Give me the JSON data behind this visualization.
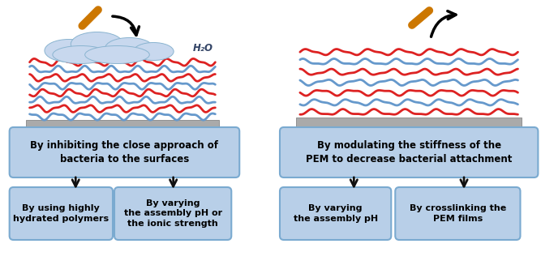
{
  "bg_color": "#ffffff",
  "box_color": "#b8cfe8",
  "box_edge_color": "#7aaad0",
  "left_main_text": "By inhibiting the close approach of\nbacteria to the surfaces",
  "right_main_text": "By modulating the stiffness of the\nPEM to decrease bacterial attachment",
  "left_sub1_text": "By using highly\nhydrated polymers",
  "left_sub2_text": "By varying\nthe assembly pH or\nthe ionic strength",
  "right_sub1_text": "By varying\nthe assembly pH",
  "right_sub2_text": "By crosslinking the\nPEM films",
  "h2o_text": "H₂O",
  "font_size_main": 8.5,
  "font_size_sub": 8,
  "font_weight": "bold",
  "cloud_color": "#c8d8ee",
  "pem_red": "#dd2222",
  "pem_blue": "#6699cc",
  "substrate_color": "#aaaaaa",
  "bacteria_color": "#cc7700",
  "arrow_color": "#111111"
}
